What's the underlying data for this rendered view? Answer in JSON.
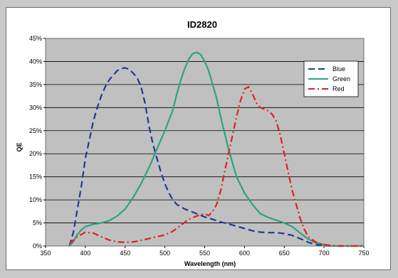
{
  "chart_data": {
    "type": "line",
    "title": "ID2820",
    "xlabel": "Wavelength (nm)",
    "ylabel": "QE",
    "xlim": [
      350,
      750
    ],
    "ylim": [
      0,
      45
    ],
    "x_ticks": [
      350,
      400,
      450,
      500,
      550,
      600,
      650,
      700,
      750
    ],
    "y_ticks": [
      0,
      5,
      10,
      15,
      20,
      25,
      30,
      35,
      40,
      45
    ],
    "y_tick_labels": [
      "0%",
      "5%",
      "10%",
      "15%",
      "20%",
      "25%",
      "30%",
      "35%",
      "40%",
      "45%"
    ],
    "grid": "horizontal",
    "legend_position": "top-right",
    "plot_background": "#c0c0c0",
    "series": [
      {
        "name": "Blue",
        "color": "#1f3a93",
        "dash": "dashed",
        "points": [
          [
            380,
            0
          ],
          [
            385,
            3
          ],
          [
            390,
            8
          ],
          [
            395,
            13
          ],
          [
            400,
            19
          ],
          [
            405,
            23
          ],
          [
            410,
            27
          ],
          [
            415,
            30
          ],
          [
            420,
            32.5
          ],
          [
            425,
            34.5
          ],
          [
            430,
            36
          ],
          [
            435,
            37
          ],
          [
            440,
            38
          ],
          [
            445,
            38.5
          ],
          [
            450,
            38.6
          ],
          [
            455,
            38.3
          ],
          [
            460,
            37.5
          ],
          [
            465,
            36.5
          ],
          [
            470,
            34.5
          ],
          [
            475,
            31
          ],
          [
            480,
            26
          ],
          [
            485,
            22
          ],
          [
            490,
            19
          ],
          [
            495,
            16
          ],
          [
            500,
            13.5
          ],
          [
            505,
            11.5
          ],
          [
            510,
            10
          ],
          [
            515,
            9
          ],
          [
            520,
            8.5
          ],
          [
            525,
            8
          ],
          [
            530,
            7.7
          ],
          [
            540,
            7
          ],
          [
            550,
            6.3
          ],
          [
            560,
            5.8
          ],
          [
            570,
            5.2
          ],
          [
            580,
            4.8
          ],
          [
            590,
            4.3
          ],
          [
            600,
            3.8
          ],
          [
            610,
            3.3
          ],
          [
            620,
            3
          ],
          [
            630,
            2.9
          ],
          [
            640,
            2.9
          ],
          [
            650,
            2.7
          ],
          [
            660,
            2.3
          ],
          [
            670,
            1.6
          ],
          [
            680,
            0.8
          ],
          [
            690,
            0.3
          ],
          [
            700,
            0.1
          ],
          [
            710,
            0
          ],
          [
            750,
            0
          ]
        ]
      },
      {
        "name": "Green",
        "color": "#2aa57a",
        "dash": "solid",
        "points": [
          [
            380,
            0
          ],
          [
            385,
            1
          ],
          [
            390,
            2.5
          ],
          [
            395,
            3.5
          ],
          [
            400,
            4.2
          ],
          [
            410,
            4.7
          ],
          [
            420,
            5
          ],
          [
            430,
            5.5
          ],
          [
            440,
            6.5
          ],
          [
            450,
            8
          ],
          [
            460,
            10.5
          ],
          [
            470,
            13.5
          ],
          [
            480,
            17
          ],
          [
            490,
            21
          ],
          [
            500,
            25
          ],
          [
            510,
            29.5
          ],
          [
            515,
            33
          ],
          [
            520,
            36
          ],
          [
            525,
            38.5
          ],
          [
            530,
            40.5
          ],
          [
            535,
            41.7
          ],
          [
            540,
            42
          ],
          [
            545,
            41.5
          ],
          [
            550,
            40
          ],
          [
            555,
            38
          ],
          [
            560,
            35
          ],
          [
            565,
            32
          ],
          [
            570,
            28
          ],
          [
            575,
            24.5
          ],
          [
            580,
            21
          ],
          [
            590,
            15
          ],
          [
            600,
            11.5
          ],
          [
            610,
            9
          ],
          [
            620,
            7
          ],
          [
            630,
            6.2
          ],
          [
            640,
            5.6
          ],
          [
            650,
            5
          ],
          [
            660,
            4.2
          ],
          [
            670,
            2.8
          ],
          [
            680,
            1.5
          ],
          [
            690,
            0.7
          ],
          [
            700,
            0.3
          ],
          [
            710,
            0
          ],
          [
            750,
            0
          ]
        ]
      },
      {
        "name": "Red",
        "color": "#e02020",
        "dash": "dash-dot",
        "points": [
          [
            380,
            0.5
          ],
          [
            390,
            2
          ],
          [
            400,
            3
          ],
          [
            410,
            2.8
          ],
          [
            420,
            2
          ],
          [
            430,
            1.3
          ],
          [
            440,
            0.9
          ],
          [
            450,
            0.8
          ],
          [
            460,
            0.9
          ],
          [
            470,
            1.2
          ],
          [
            480,
            1.6
          ],
          [
            490,
            2
          ],
          [
            500,
            2.4
          ],
          [
            510,
            3.2
          ],
          [
            520,
            4.5
          ],
          [
            530,
            5.8
          ],
          [
            540,
            6.5
          ],
          [
            550,
            7
          ],
          [
            555,
            6.6
          ],
          [
            560,
            7.5
          ],
          [
            565,
            9
          ],
          [
            570,
            12
          ],
          [
            575,
            16
          ],
          [
            580,
            20
          ],
          [
            585,
            24
          ],
          [
            590,
            28
          ],
          [
            595,
            31.5
          ],
          [
            600,
            34
          ],
          [
            605,
            34.5
          ],
          [
            610,
            33
          ],
          [
            615,
            31
          ],
          [
            620,
            30
          ],
          [
            630,
            29.3
          ],
          [
            635,
            28.5
          ],
          [
            640,
            27
          ],
          [
            645,
            24
          ],
          [
            650,
            20
          ],
          [
            655,
            16
          ],
          [
            660,
            12
          ],
          [
            665,
            9
          ],
          [
            670,
            6
          ],
          [
            675,
            3.7
          ],
          [
            680,
            2
          ],
          [
            690,
            0.8
          ],
          [
            700,
            0.3
          ],
          [
            710,
            0.1
          ],
          [
            720,
            0
          ],
          [
            750,
            0
          ]
        ]
      }
    ]
  }
}
